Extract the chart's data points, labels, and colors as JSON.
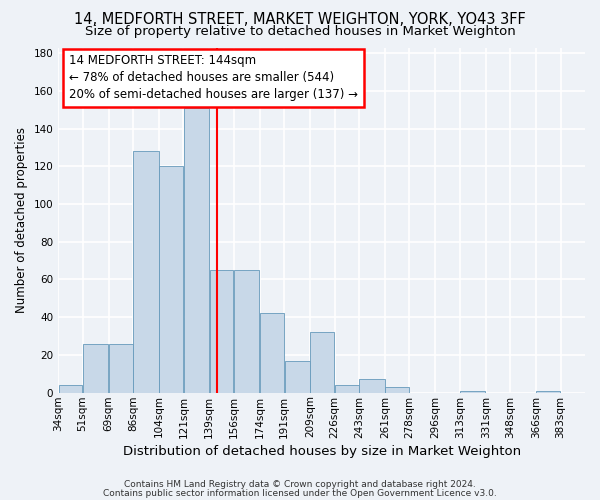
{
  "title1": "14, MEDFORTH STREET, MARKET WEIGHTON, YORK, YO43 3FF",
  "title2": "Size of property relative to detached houses in Market Weighton",
  "xlabel": "Distribution of detached houses by size in Market Weighton",
  "ylabel": "Number of detached properties",
  "bin_labels": [
    "34sqm",
    "51sqm",
    "69sqm",
    "86sqm",
    "104sqm",
    "121sqm",
    "139sqm",
    "156sqm",
    "174sqm",
    "191sqm",
    "209sqm",
    "226sqm",
    "243sqm",
    "261sqm",
    "278sqm",
    "296sqm",
    "313sqm",
    "331sqm",
    "348sqm",
    "366sqm",
    "383sqm"
  ],
  "bin_edges": [
    34,
    51,
    69,
    86,
    104,
    121,
    139,
    156,
    174,
    191,
    209,
    226,
    243,
    261,
    278,
    296,
    313,
    331,
    348,
    366,
    383,
    400
  ],
  "bar_heights": [
    4,
    26,
    26,
    128,
    120,
    151,
    65,
    65,
    42,
    17,
    32,
    4,
    7,
    3,
    0,
    0,
    1,
    0,
    0,
    1,
    0
  ],
  "bar_color": "#c8d8e8",
  "bar_edge_color": "#6699bb",
  "property_line_x": 144,
  "property_line_color": "red",
  "annotation_line1": "14 MEDFORTH STREET: 144sqm",
  "annotation_line2": "← 78% of detached houses are smaller (544)",
  "annotation_line3": "20% of semi-detached houses are larger (137) →",
  "annotation_box_color": "white",
  "annotation_box_edge_color": "red",
  "ylim": [
    0,
    183
  ],
  "yticks": [
    0,
    20,
    40,
    60,
    80,
    100,
    120,
    140,
    160,
    180
  ],
  "footer1": "Contains HM Land Registry data © Crown copyright and database right 2024.",
  "footer2": "Contains public sector information licensed under the Open Government Licence v3.0.",
  "bg_color": "#eef2f7",
  "grid_color": "#ffffff",
  "title_fontsize": 10.5,
  "subtitle_fontsize": 9.5,
  "xlabel_fontsize": 9.5,
  "ylabel_fontsize": 8.5,
  "tick_fontsize": 7.5,
  "annotation_fontsize": 8.5,
  "footer_fontsize": 6.5
}
